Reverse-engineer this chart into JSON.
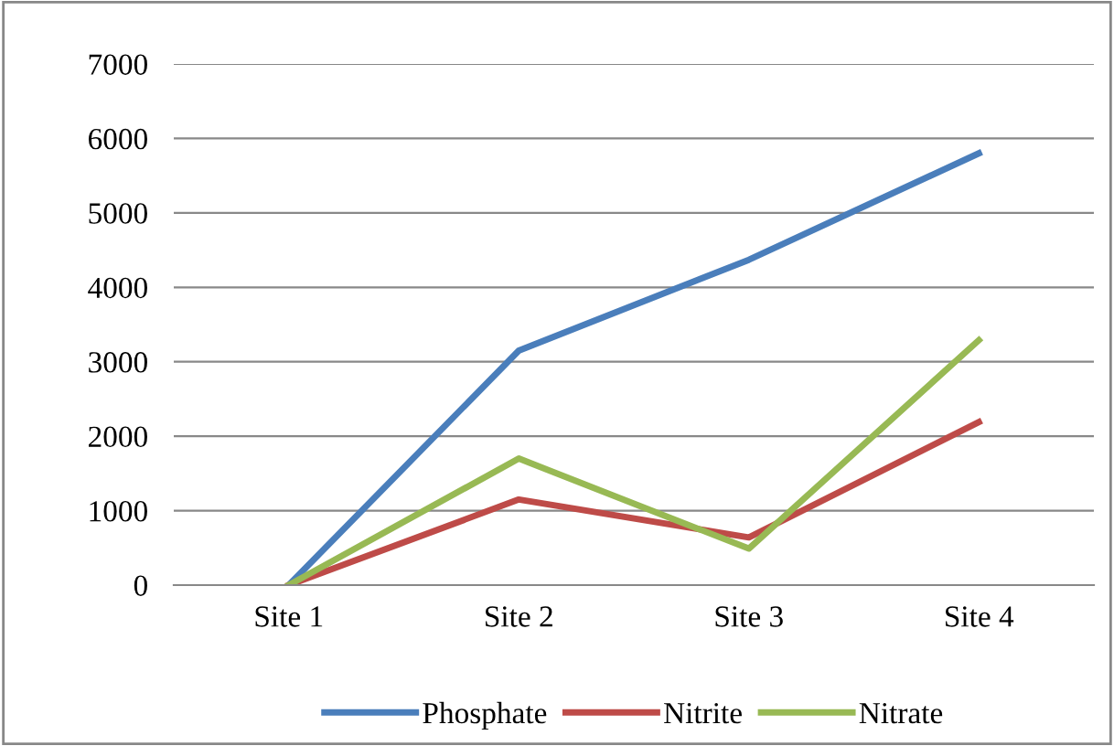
{
  "chart_data": {
    "type": "line",
    "categories": [
      "Site 1",
      "Site 2",
      "Site 3",
      "Site 4"
    ],
    "series": [
      {
        "name": "Phosphate",
        "color": "#4a7ebb",
        "values": [
          0,
          3150,
          4370,
          5800
        ]
      },
      {
        "name": "Nitrite",
        "color": "#be4b48",
        "values": [
          0,
          1150,
          640,
          2190
        ]
      },
      {
        "name": "Nitrate",
        "color": "#98b954",
        "values": [
          0,
          1700,
          490,
          3290
        ]
      }
    ],
    "ylim": [
      0,
      7000
    ],
    "yticks": [
      0,
      1000,
      2000,
      3000,
      4000,
      5000,
      6000,
      7000
    ],
    "grid": "y",
    "legend": "bottom",
    "marker": "none",
    "line_style": "solid"
  }
}
